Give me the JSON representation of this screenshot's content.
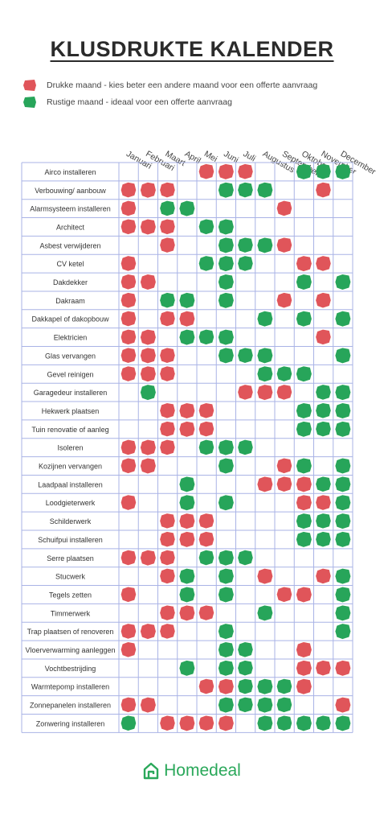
{
  "title": "KLUSDRUKTE KALENDER",
  "legend": [
    {
      "label": "Drukke maand - kies beter een andere maand voor een offerte aanvraag",
      "color": "#e0555a",
      "status": "busy"
    },
    {
      "label": "Rustige maand - ideaal voor een offerte aanvraag",
      "color": "#27a55a",
      "status": "quiet"
    }
  ],
  "colors": {
    "busy": "#e0555a",
    "quiet": "#27a55a",
    "grid": "#a9b3e6"
  },
  "brand": "Homedeal",
  "chart_data": {
    "type": "table",
    "title": "KLUSDRUKTE KALENDER",
    "months": [
      "Januari",
      "Februari",
      "Maart",
      "April",
      "Mei",
      "Juni",
      "Juli",
      "Augustus",
      "September",
      "Oktober",
      "November",
      "December"
    ],
    "legend_codes": {
      "R": "Drukke maand",
      "G": "Rustige maand"
    },
    "rows": [
      {
        "name": "Airco installeren",
        "cells": [
          "",
          "",
          "",
          "",
          "R",
          "R",
          "R",
          "",
          "",
          "G",
          "G",
          "G"
        ]
      },
      {
        "name": "Verbouwing/ aanbouw",
        "cells": [
          "R",
          "R",
          "R",
          "",
          "",
          "G",
          "G",
          "G",
          "",
          "",
          "R",
          ""
        ]
      },
      {
        "name": "Alarmsysteem installeren",
        "cells": [
          "R",
          "",
          "G",
          "G",
          "",
          "",
          "",
          "",
          "R",
          "",
          "",
          ""
        ]
      },
      {
        "name": "Architect",
        "cells": [
          "R",
          "R",
          "R",
          "",
          "G",
          "G",
          "",
          "",
          "",
          "",
          "",
          ""
        ]
      },
      {
        "name": "Asbest verwijderen",
        "cells": [
          "",
          "",
          "R",
          "",
          "",
          "G",
          "G",
          "G",
          "R",
          "",
          "",
          ""
        ]
      },
      {
        "name": "CV ketel",
        "cells": [
          "R",
          "",
          "",
          "",
          "G",
          "G",
          "G",
          "",
          "",
          "R",
          "R",
          ""
        ]
      },
      {
        "name": "Dakdekker",
        "cells": [
          "R",
          "R",
          "",
          "",
          "",
          "G",
          "",
          "",
          "",
          "G",
          "",
          "G"
        ]
      },
      {
        "name": "Dakraam",
        "cells": [
          "R",
          "",
          "G",
          "G",
          "",
          "G",
          "",
          "",
          "R",
          "",
          "R",
          ""
        ]
      },
      {
        "name": "Dakkapel of dakopbouw",
        "cells": [
          "R",
          "",
          "R",
          "R",
          "",
          "",
          "",
          "G",
          "",
          "G",
          "",
          "G"
        ]
      },
      {
        "name": "Elektricien",
        "cells": [
          "R",
          "R",
          "",
          "G",
          "G",
          "G",
          "",
          "",
          "",
          "",
          "R",
          ""
        ]
      },
      {
        "name": "Glas vervangen",
        "cells": [
          "R",
          "R",
          "R",
          "",
          "",
          "G",
          "G",
          "G",
          "",
          "",
          "",
          "G"
        ]
      },
      {
        "name": "Gevel reinigen",
        "cells": [
          "R",
          "R",
          "R",
          "",
          "",
          "",
          "",
          "G",
          "G",
          "G",
          "",
          ""
        ]
      },
      {
        "name": "Garagedeur installeren",
        "cells": [
          "",
          "G",
          "",
          "",
          "",
          "",
          "R",
          "R",
          "R",
          "",
          "G",
          "G"
        ]
      },
      {
        "name": "Hekwerk plaatsen",
        "cells": [
          "",
          "",
          "R",
          "R",
          "R",
          "",
          "",
          "",
          "",
          "G",
          "G",
          "G"
        ]
      },
      {
        "name": "Tuin renovatie of aanleg",
        "cells": [
          "",
          "",
          "R",
          "R",
          "R",
          "",
          "",
          "",
          "",
          "G",
          "G",
          "G"
        ]
      },
      {
        "name": "Isoleren",
        "cells": [
          "R",
          "R",
          "R",
          "",
          "G",
          "G",
          "G",
          "",
          "",
          "",
          "",
          ""
        ]
      },
      {
        "name": "Kozijnen vervangen",
        "cells": [
          "R",
          "R",
          "",
          "",
          "",
          "G",
          "",
          "",
          "R",
          "G",
          "",
          "G"
        ]
      },
      {
        "name": "Laadpaal installeren",
        "cells": [
          "",
          "",
          "",
          "G",
          "",
          "",
          "",
          "R",
          "R",
          "R",
          "G",
          "G"
        ]
      },
      {
        "name": "Loodgieterwerk",
        "cells": [
          "R",
          "",
          "",
          "G",
          "",
          "G",
          "",
          "",
          "",
          "R",
          "R",
          "G"
        ]
      },
      {
        "name": "Schilderwerk",
        "cells": [
          "",
          "",
          "R",
          "R",
          "R",
          "",
          "",
          "",
          "",
          "G",
          "G",
          "G"
        ]
      },
      {
        "name": "Schuifpui installeren",
        "cells": [
          "",
          "",
          "R",
          "R",
          "R",
          "",
          "",
          "",
          "",
          "G",
          "G",
          "G"
        ]
      },
      {
        "name": "Serre plaatsen",
        "cells": [
          "R",
          "R",
          "R",
          "",
          "G",
          "G",
          "G",
          "",
          "",
          "",
          "",
          ""
        ]
      },
      {
        "name": "Stucwerk",
        "cells": [
          "",
          "",
          "R",
          "G",
          "",
          "G",
          "",
          "R",
          "",
          "",
          "R",
          "G"
        ]
      },
      {
        "name": "Tegels zetten",
        "cells": [
          "R",
          "",
          "",
          "G",
          "",
          "G",
          "",
          "",
          "R",
          "R",
          "",
          "G"
        ]
      },
      {
        "name": "Timmerwerk",
        "cells": [
          "",
          "",
          "R",
          "R",
          "R",
          "",
          "",
          "G",
          "",
          "",
          "",
          "G"
        ]
      },
      {
        "name": "Trap plaatsen of renoveren",
        "cells": [
          "R",
          "R",
          "R",
          "",
          "",
          "G",
          "",
          "",
          "",
          "",
          "",
          "G"
        ]
      },
      {
        "name": "Vloerverwarming aanleggen",
        "cells": [
          "R",
          "",
          "",
          "",
          "",
          "G",
          "G",
          "",
          "",
          "R",
          "",
          ""
        ]
      },
      {
        "name": "Vochtbestrijding",
        "cells": [
          "",
          "",
          "",
          "G",
          "",
          "G",
          "G",
          "",
          "",
          "R",
          "R",
          "R"
        ]
      },
      {
        "name": "Warmtepomp installeren",
        "cells": [
          "",
          "",
          "",
          "",
          "R",
          "R",
          "G",
          "G",
          "G",
          "R",
          "",
          ""
        ]
      },
      {
        "name": "Zonnepanelen installeren",
        "cells": [
          "R",
          "R",
          "",
          "",
          "",
          "G",
          "G",
          "G",
          "G",
          "",
          "",
          "R"
        ]
      },
      {
        "name": "Zonwering installeren",
        "cells": [
          "G",
          "",
          "R",
          "R",
          "R",
          "R",
          "",
          "G",
          "G",
          "G",
          "G",
          "G"
        ]
      }
    ]
  }
}
